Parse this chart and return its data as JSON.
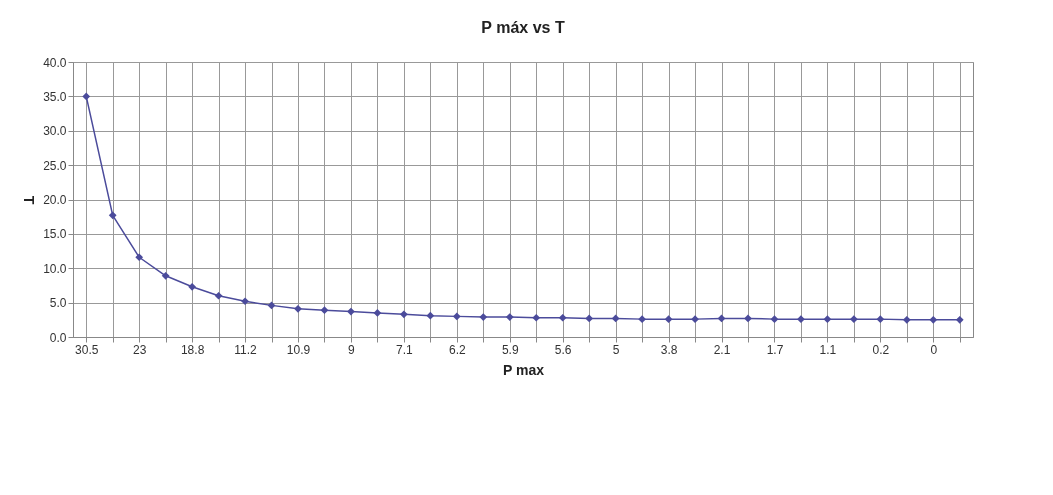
{
  "chart_data": {
    "type": "line",
    "title": "P máx vs T",
    "xlabel": "P max",
    "ylabel": "T",
    "categories": [
      "30.5",
      null,
      "23",
      null,
      "18.8",
      null,
      "11.2",
      null,
      "10.9",
      null,
      "9",
      null,
      "7.1",
      null,
      "6.2",
      null,
      "5.9",
      null,
      "5.6",
      null,
      "5",
      null,
      "3.8",
      null,
      "2.1",
      null,
      "1.7",
      null,
      "1.1",
      null,
      "0.2",
      null,
      "0",
      null
    ],
    "series": [
      {
        "color": "#4b4b9b",
        "values": [
          35.0,
          17.7,
          11.6,
          8.9,
          7.3,
          6.0,
          5.2,
          4.6,
          4.1,
          3.9,
          3.7,
          3.5,
          3.3,
          3.1,
          3.0,
          2.9,
          2.9,
          2.8,
          2.8,
          2.7,
          2.7,
          2.6,
          2.6,
          2.6,
          2.7,
          2.7,
          2.6,
          2.6,
          2.6,
          2.6,
          2.6,
          2.5,
          2.5,
          2.5
        ]
      }
    ],
    "ylim": [
      0,
      40
    ],
    "yticks": [
      {
        "value": 0,
        "label": "0.0"
      },
      {
        "value": 5,
        "label": "5.0"
      },
      {
        "value": 10,
        "label": "10.0"
      },
      {
        "value": 15,
        "label": "15.0"
      },
      {
        "value": 20,
        "label": "20.0"
      },
      {
        "value": 25,
        "label": "25.0"
      },
      {
        "value": 30,
        "label": "30.0"
      },
      {
        "value": 35,
        "label": "35.0"
      },
      {
        "value": 40,
        "label": "40.0"
      }
    ],
    "grid": true,
    "marker": "diamond",
    "line_style": "solid"
  }
}
